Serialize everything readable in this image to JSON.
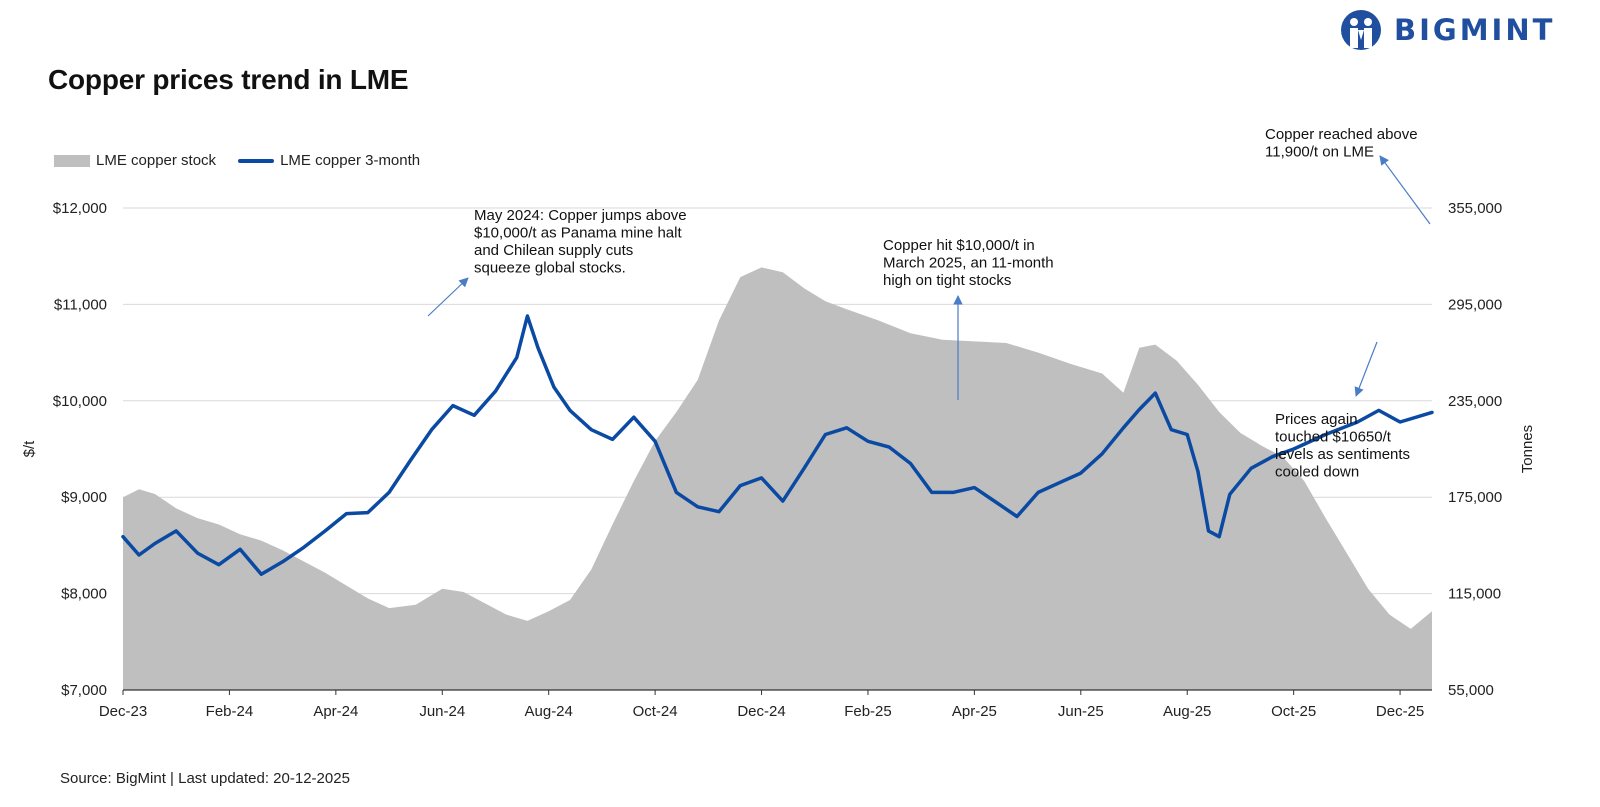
{
  "brand": {
    "name": "BIGMINT",
    "accent": "#1f4f9e"
  },
  "chart_data": {
    "type": "line",
    "title": "Copper prices trend in LME",
    "source": "Source: BigMint | Last updated: 20-12-2025",
    "legend": {
      "placement": "top-left",
      "entries": [
        "LME copper stock",
        "LME copper 3-month"
      ]
    },
    "colors": {
      "stock": "#bfbfbf",
      "price": "#0b4aa2",
      "grid": "#d9d9d9",
      "annotation": "#4a7cc7"
    },
    "x_ticks": [
      "Dec-23",
      "Feb-24",
      "Apr-24",
      "Jun-24",
      "Aug-24",
      "Oct-24",
      "Dec-24",
      "Feb-25",
      "Apr-25",
      "Jun-25",
      "Aug-25",
      "Oct-25",
      "Dec-25"
    ],
    "y_left": {
      "label": "$/t",
      "range": [
        7000,
        12000
      ],
      "ticks": [
        7000,
        8000,
        9000,
        10000,
        11000,
        12000
      ],
      "tick_labels": [
        "$7,000",
        "$8,000",
        "$9,000",
        "$10,000",
        "$11,000",
        "$12,000"
      ]
    },
    "y_right": {
      "label": "Tonnes",
      "range": [
        55000,
        355000
      ],
      "ticks": [
        55000,
        115000,
        175000,
        235000,
        295000,
        355000
      ],
      "tick_labels": [
        "55,000",
        "115,000",
        "175,000",
        "235,000",
        "295,000",
        "355,000"
      ]
    },
    "x_range_months": [
      0,
      24.6
    ],
    "series": [
      {
        "name": "LME copper stock",
        "axis": "right",
        "type": "area",
        "points": [
          [
            0,
            175000
          ],
          [
            0.3,
            180000
          ],
          [
            0.6,
            177000
          ],
          [
            1.0,
            168000
          ],
          [
            1.4,
            162000
          ],
          [
            1.8,
            158000
          ],
          [
            2.2,
            152000
          ],
          [
            2.6,
            148000
          ],
          [
            3.0,
            142000
          ],
          [
            3.4,
            135000
          ],
          [
            3.8,
            128000
          ],
          [
            4.2,
            120000
          ],
          [
            4.6,
            112000
          ],
          [
            5.0,
            106000
          ],
          [
            5.5,
            108000
          ],
          [
            6.0,
            118000
          ],
          [
            6.4,
            116000
          ],
          [
            6.8,
            109000
          ],
          [
            7.2,
            102000
          ],
          [
            7.6,
            98000
          ],
          [
            8.0,
            104000
          ],
          [
            8.4,
            111000
          ],
          [
            8.8,
            130000
          ],
          [
            9.2,
            158000
          ],
          [
            9.6,
            185000
          ],
          [
            10.0,
            210000
          ],
          [
            10.4,
            228000
          ],
          [
            10.8,
            248000
          ],
          [
            11.2,
            285000
          ],
          [
            11.6,
            312000
          ],
          [
            12.0,
            318000
          ],
          [
            12.4,
            315000
          ],
          [
            12.8,
            305000
          ],
          [
            13.2,
            297000
          ],
          [
            13.6,
            292000
          ],
          [
            14.2,
            285000
          ],
          [
            14.8,
            277000
          ],
          [
            15.4,
            273000
          ],
          [
            16.0,
            272000
          ],
          [
            16.6,
            271000
          ],
          [
            17.2,
            265000
          ],
          [
            17.8,
            258000
          ],
          [
            18.4,
            252000
          ],
          [
            18.8,
            240000
          ],
          [
            19.1,
            268000
          ],
          [
            19.4,
            270000
          ],
          [
            19.8,
            260000
          ],
          [
            20.2,
            245000
          ],
          [
            20.6,
            228000
          ],
          [
            21.0,
            215000
          ],
          [
            21.4,
            207000
          ],
          [
            21.8,
            200000
          ],
          [
            22.2,
            185000
          ],
          [
            22.6,
            162000
          ],
          [
            23.0,
            140000
          ],
          [
            23.4,
            118000
          ],
          [
            23.8,
            102000
          ],
          [
            24.2,
            93000
          ],
          [
            24.6,
            104000
          ]
        ]
      },
      {
        "name": "LME copper 3-month",
        "axis": "left",
        "type": "line",
        "points": [
          [
            0,
            8590
          ],
          [
            0.3,
            8400
          ],
          [
            0.6,
            8520
          ],
          [
            1.0,
            8650
          ],
          [
            1.4,
            8420
          ],
          [
            1.8,
            8300
          ],
          [
            2.2,
            8460
          ],
          [
            2.6,
            8200
          ],
          [
            3.0,
            8330
          ],
          [
            3.4,
            8480
          ],
          [
            3.8,
            8650
          ],
          [
            4.2,
            8830
          ],
          [
            4.6,
            8840
          ],
          [
            5.0,
            9050
          ],
          [
            5.4,
            9380
          ],
          [
            5.8,
            9700
          ],
          [
            6.2,
            9950
          ],
          [
            6.6,
            9850
          ],
          [
            7.0,
            10100
          ],
          [
            7.4,
            10450
          ],
          [
            7.6,
            10880
          ],
          [
            7.8,
            10550
          ],
          [
            8.1,
            10140
          ],
          [
            8.4,
            9900
          ],
          [
            8.8,
            9700
          ],
          [
            9.2,
            9600
          ],
          [
            9.6,
            9830
          ],
          [
            10.0,
            9580
          ],
          [
            10.4,
            9050
          ],
          [
            10.8,
            8900
          ],
          [
            11.2,
            8850
          ],
          [
            11.6,
            9120
          ],
          [
            12.0,
            9200
          ],
          [
            12.4,
            8960
          ],
          [
            12.8,
            9300
          ],
          [
            13.2,
            9650
          ],
          [
            13.6,
            9720
          ],
          [
            14.0,
            9580
          ],
          [
            14.4,
            9520
          ],
          [
            14.8,
            9350
          ],
          [
            15.2,
            9050
          ],
          [
            15.6,
            9050
          ],
          [
            16.0,
            9100
          ],
          [
            16.4,
            8950
          ],
          [
            16.8,
            8800
          ],
          [
            17.2,
            9050
          ],
          [
            17.6,
            9150
          ],
          [
            18.0,
            9250
          ],
          [
            18.4,
            9450
          ],
          [
            18.8,
            9720
          ],
          [
            19.1,
            9910
          ],
          [
            19.4,
            10080
          ],
          [
            19.7,
            9700
          ],
          [
            20.0,
            9650
          ],
          [
            20.2,
            9270
          ],
          [
            20.4,
            8650
          ],
          [
            20.6,
            8590
          ],
          [
            20.8,
            9030
          ],
          [
            21.2,
            9300
          ],
          [
            21.6,
            9420
          ],
          [
            22.0,
            9500
          ],
          [
            22.6,
            9650
          ],
          [
            23.2,
            9780
          ],
          [
            23.6,
            9900
          ],
          [
            24.0,
            9780
          ],
          [
            24.6,
            9880
          ]
        ]
      }
    ],
    "annotations": [
      {
        "lines": [
          "May 2024: Copper jumps above",
          "$10,000/t as Panama mine halt",
          "and Chilean supply cuts",
          "squeeze global stocks."
        ]
      },
      {
        "lines": [
          "Copper hit $10,000/t in",
          "March 2025, an 11-month",
          "high on tight stocks"
        ]
      },
      {
        "lines": [
          "Copper reached above",
          "11,900/t on LME"
        ]
      },
      {
        "lines": [
          "Prices again",
          "touched $10650/t",
          "levels as sentiments",
          "cooled down"
        ]
      }
    ]
  }
}
